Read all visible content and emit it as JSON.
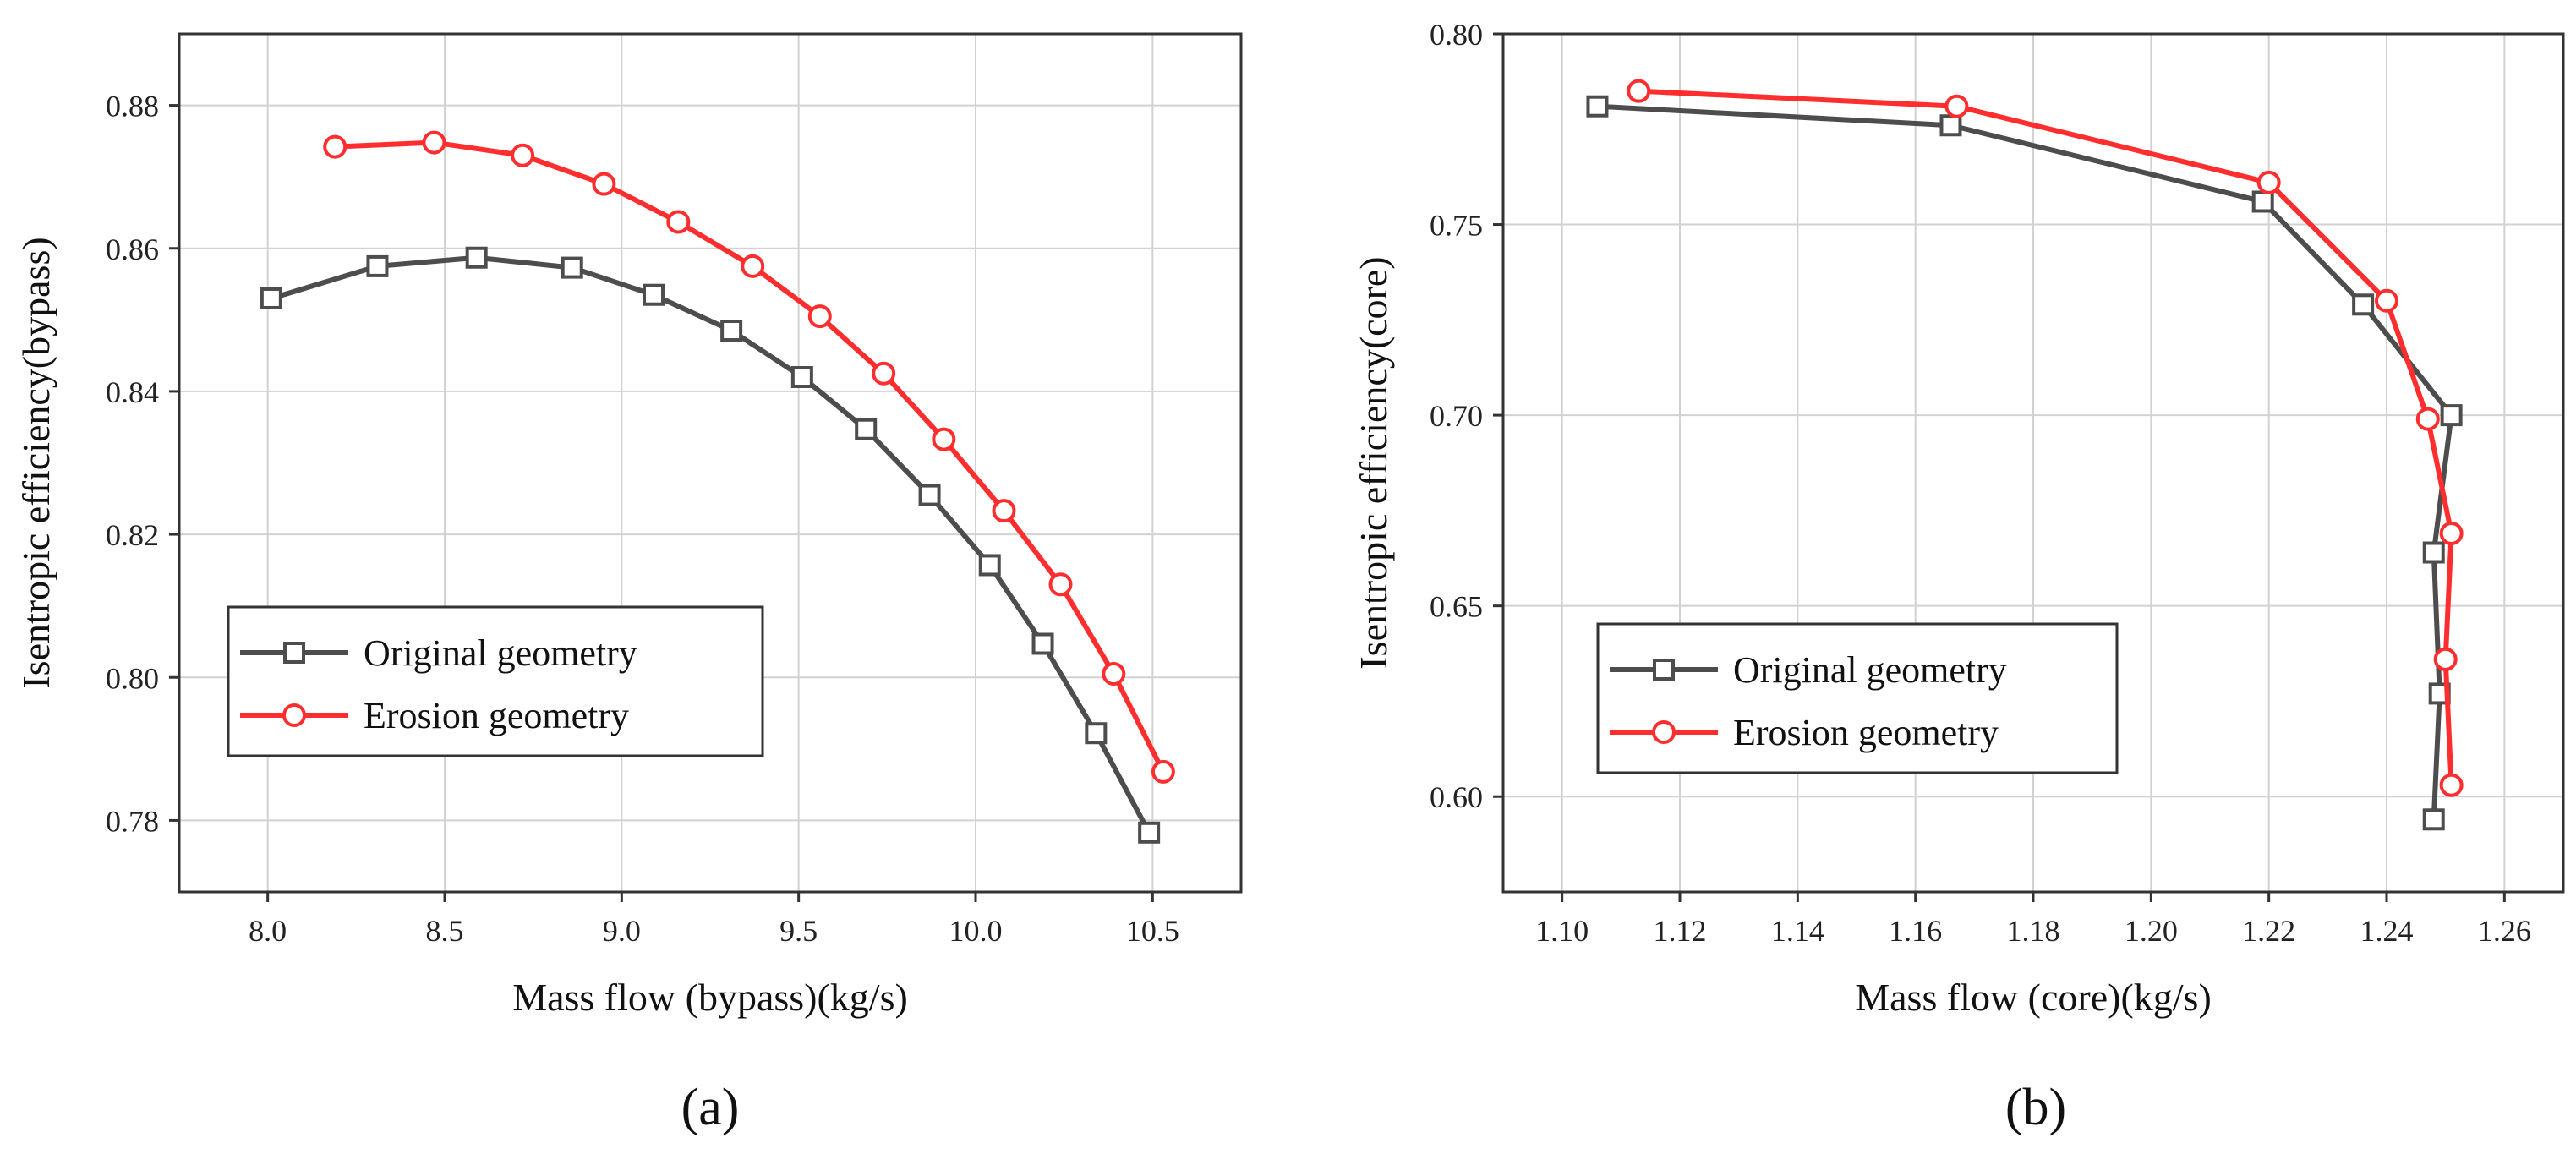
{
  "colors": {
    "original": "#4d4d4d",
    "erosion": "#ff2e2e"
  },
  "chart_data": [
    {
      "type": "line",
      "panel_label": "(a)",
      "xlabel": "Mass flow (bypass)(kg/s)",
      "ylabel": "Isentropic efficiency(bypass)",
      "xlim": [
        7.75,
        10.75
      ],
      "ylim": [
        0.77,
        0.89
      ],
      "xticks": [
        8.0,
        8.5,
        9.0,
        9.5,
        10.0,
        10.5
      ],
      "xtick_labels": [
        "8.0",
        "8.5",
        "9.0",
        "9.5",
        "10.0",
        "10.5"
      ],
      "yticks": [
        0.78,
        0.8,
        0.82,
        0.84,
        0.86,
        0.88
      ],
      "ytick_labels": [
        "0.78",
        "0.80",
        "0.82",
        "0.84",
        "0.86",
        "0.88"
      ],
      "legend_position": "lower-left",
      "series": [
        {
          "name": "Original geometry",
          "marker": "square",
          "x": [
            8.01,
            8.31,
            8.59,
            8.86,
            9.09,
            9.31,
            9.51,
            9.69,
            9.87,
            10.04,
            10.19,
            10.34,
            10.49
          ],
          "y": [
            0.853,
            0.8575,
            0.8587,
            0.8573,
            0.8535,
            0.8485,
            0.842,
            0.8347,
            0.8255,
            0.8157,
            0.8047,
            0.7922,
            0.7783
          ]
        },
        {
          "name": "Erosion geometry",
          "marker": "circle",
          "x": [
            8.19,
            8.47,
            8.72,
            8.95,
            9.16,
            9.37,
            9.56,
            9.74,
            9.91,
            10.08,
            10.24,
            10.39,
            10.53
          ],
          "y": [
            0.8742,
            0.8748,
            0.873,
            0.869,
            0.8637,
            0.8575,
            0.8505,
            0.8425,
            0.8333,
            0.8233,
            0.813,
            0.8005,
            0.7868
          ]
        }
      ]
    },
    {
      "type": "line",
      "panel_label": "(b)",
      "xlabel": "Mass flow (core)(kg/s)",
      "ylabel": "Isentropic efficiency(core)",
      "xlim": [
        1.09,
        1.27
      ],
      "ylim": [
        0.575,
        0.8
      ],
      "xticks": [
        1.1,
        1.12,
        1.14,
        1.16,
        1.18,
        1.2,
        1.22,
        1.24,
        1.26
      ],
      "xtick_labels": [
        "1.10",
        "1.12",
        "1.14",
        "1.16",
        "1.18",
        "1.20",
        "1.22",
        "1.24",
        "1.26"
      ],
      "yticks": [
        0.6,
        0.65,
        0.7,
        0.75,
        0.8
      ],
      "ytick_labels": [
        "0.60",
        "0.65",
        "0.70",
        "0.75",
        "0.80"
      ],
      "legend_position": "lower-left",
      "series": [
        {
          "name": "Original geometry",
          "marker": "square",
          "x": [
            1.106,
            1.166,
            1.219,
            1.236,
            1.251,
            1.248,
            1.249,
            1.248
          ],
          "y": [
            0.781,
            0.776,
            0.756,
            0.729,
            0.7,
            0.664,
            0.627,
            0.594
          ]
        },
        {
          "name": "Erosion geometry",
          "marker": "circle",
          "x": [
            1.113,
            1.167,
            1.22,
            1.24,
            1.247,
            1.251,
            1.25,
            1.251
          ],
          "y": [
            0.785,
            0.781,
            0.761,
            0.73,
            0.699,
            0.669,
            0.636,
            0.603
          ]
        }
      ]
    }
  ]
}
